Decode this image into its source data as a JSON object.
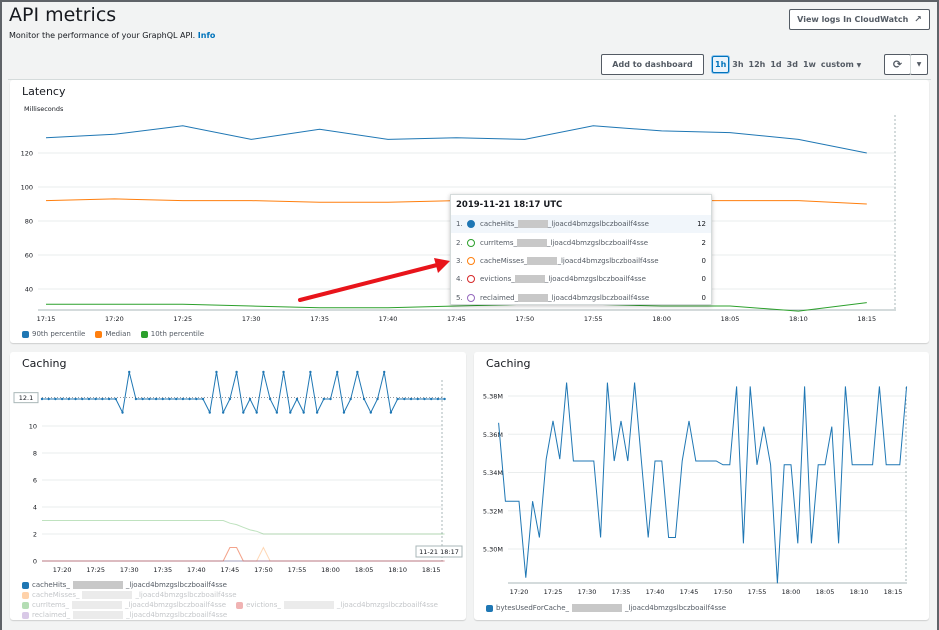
{
  "header": {
    "title": "API metrics",
    "subtitle": "Monitor the performance of your GraphQL API.",
    "info_link": "Info",
    "view_logs": "View logs In CloudWatch",
    "external_icon": "external-link-icon"
  },
  "toolbar": {
    "add_to_dashboard": "Add to dashboard",
    "ranges": [
      "1h",
      "3h",
      "12h",
      "1d",
      "3d",
      "1w"
    ],
    "selected_range": "1h",
    "custom": "custom",
    "refresh_icon": "refresh-icon",
    "dropdown_icon": "caret-down-icon"
  },
  "colors": {
    "blue": "#1f77b4",
    "orange": "#ff7f0e",
    "green": "#2ca02c",
    "red": "#d62728",
    "purple": "#9467bd",
    "accent": "#0073bb",
    "arrow": "#e8141b"
  },
  "tooltip": {
    "title": "2019-11-21 18:17 UTC",
    "rows": [
      {
        "index": "1.",
        "prefix": "cacheHits_",
        "suffix": "_ljoacd4bmzgslbczboailf4sse",
        "value": "12",
        "color": "#1f77b4",
        "filled": true
      },
      {
        "index": "2.",
        "prefix": "currItems_",
        "suffix": "_ljoacd4bmzgslbczboailf4sse",
        "value": "2",
        "color": "#2ca02c",
        "filled": false
      },
      {
        "index": "3.",
        "prefix": "cacheMisses_",
        "suffix": "_ljoacd4bmzgslbczboailf4sse",
        "value": "0",
        "color": "#ff7f0e",
        "filled": false
      },
      {
        "index": "4.",
        "prefix": "evictions_",
        "suffix": "_ljoacd4bmzgslbczboailf4sse",
        "value": "0",
        "color": "#d62728",
        "filled": false
      },
      {
        "index": "5.",
        "prefix": "reclaimed_",
        "suffix": "_ljoacd4bmzgslbczboailf4sse",
        "value": "0",
        "color": "#9467bd",
        "filled": false
      }
    ]
  },
  "chart_data": [
    {
      "type": "line",
      "title": "Latency",
      "ylabel": "Milliseconds",
      "ylim": [
        25,
        142
      ],
      "yticks": [
        40,
        60,
        80,
        100,
        120
      ],
      "xlim": [
        "17:15",
        "18:17"
      ],
      "xticks": [
        "17:15",
        "17:20",
        "17:25",
        "17:30",
        "17:35",
        "17:40",
        "17:45",
        "17:50",
        "17:55",
        "18:00",
        "18:05",
        "18:10",
        "18:15"
      ],
      "x": [
        "17:15",
        "17:20",
        "17:25",
        "17:30",
        "17:35",
        "17:40",
        "17:45",
        "17:50",
        "17:55",
        "18:00",
        "18:05",
        "18:10",
        "18:15"
      ],
      "grid": true,
      "legend": "bottom",
      "series": [
        {
          "name": "90th percentile",
          "color": "#1f77b4",
          "values": [
            129,
            131,
            136,
            128,
            134,
            128,
            129,
            128,
            136,
            133,
            132,
            128,
            120
          ]
        },
        {
          "name": "Median",
          "color": "#ff7f0e",
          "values": [
            92,
            93,
            92,
            92,
            91,
            91,
            92,
            90,
            93,
            92,
            92,
            92,
            90
          ]
        },
        {
          "name": "10th percentile",
          "color": "#2ca02c",
          "values": [
            31,
            31,
            31,
            30,
            29,
            29,
            30,
            31,
            31,
            30,
            30,
            27,
            32
          ]
        }
      ]
    },
    {
      "type": "line",
      "title": "Caching",
      "ylim": [
        0,
        14
      ],
      "yticks": [
        0,
        2,
        4,
        6,
        8,
        10
      ],
      "highlight_ylabel": "12.1",
      "xlim": [
        "17:17",
        "18:17"
      ],
      "xticks": [
        "17:20",
        "17:25",
        "17:30",
        "17:35",
        "17:40",
        "17:45",
        "17:50",
        "17:55",
        "18:00",
        "18:05",
        "18:10",
        "18:15"
      ],
      "cursor_label": "11-21 18:17",
      "start": "17:17",
      "step_minutes": 1,
      "grid": true,
      "legend": "bottom",
      "series": [
        {
          "prefix": "cacheHits_",
          "suffix": "_ljoacd4bmzgslbczboailf4sse",
          "color": "#1f77b4",
          "active": true,
          "values": [
            12,
            12,
            12,
            12,
            12,
            12,
            12,
            12,
            12,
            12,
            12,
            12,
            11,
            14,
            12,
            12,
            12,
            12,
            12,
            12,
            12,
            12,
            12,
            12,
            12,
            11,
            14,
            11,
            12,
            14,
            11,
            12,
            11,
            14,
            12,
            11,
            14,
            11,
            12,
            11,
            14,
            11,
            12,
            12,
            14,
            11,
            12,
            14,
            12,
            11,
            12,
            14,
            11,
            12,
            12,
            12,
            12,
            12,
            12,
            12,
            12
          ]
        },
        {
          "prefix": "cacheMisses_",
          "suffix": "_ljoacd4bmzgslbczboailf4sse",
          "color": "#ff7f0e",
          "active": false,
          "values": [
            0,
            0,
            0,
            0,
            0,
            0,
            0,
            0,
            0,
            0,
            0,
            0,
            0,
            0,
            0,
            0,
            0,
            0,
            0,
            0,
            0,
            0,
            0,
            0,
            0,
            0,
            0,
            0,
            1,
            1,
            0,
            0,
            0,
            1,
            0,
            0,
            0,
            0,
            0,
            0,
            0,
            0,
            0,
            0,
            0,
            0,
            0,
            0,
            0,
            0,
            0,
            0,
            0,
            0,
            0,
            0,
            0,
            0,
            0,
            0,
            0
          ]
        },
        {
          "prefix": "currItems_",
          "suffix": "_ljoacd4bmzgslbczboailf4sse",
          "color": "#2ca02c",
          "active": false,
          "values": [
            3,
            3,
            3,
            3,
            3,
            3,
            3,
            3,
            3,
            3,
            3,
            3,
            3,
            3,
            3,
            3,
            3,
            3,
            3,
            3,
            3,
            3,
            3,
            3,
            3,
            3,
            3,
            3,
            2.8,
            2.7,
            2.5,
            2.3,
            2.2,
            2,
            2,
            2,
            2,
            2,
            2,
            2,
            2,
            2,
            2,
            2,
            2,
            2,
            2,
            2,
            2,
            2,
            2,
            2,
            2,
            2,
            2,
            2,
            2,
            2,
            2,
            2,
            2
          ]
        },
        {
          "prefix": "evictions_",
          "suffix": "_ljoacd4bmzgslbczboailf4sse",
          "color": "#d62728",
          "active": false,
          "values": [
            0,
            0,
            0,
            0,
            0,
            0,
            0,
            0,
            0,
            0,
            0,
            0,
            0,
            0,
            0,
            0,
            0,
            0,
            0,
            0,
            0,
            0,
            0,
            0,
            0,
            0,
            0,
            0,
            1,
            1,
            0,
            0,
            0,
            0,
            0,
            0,
            0,
            0,
            0,
            0,
            0,
            0,
            0,
            0,
            0,
            0,
            0,
            0,
            0,
            0,
            0,
            0,
            0,
            0,
            0,
            0,
            0,
            0,
            0,
            0,
            0
          ]
        },
        {
          "prefix": "reclaimed_",
          "suffix": "_ljoacd4bmzgslbczboailf4sse",
          "color": "#9467bd",
          "active": false,
          "values": [
            0,
            0,
            0,
            0,
            0,
            0,
            0,
            0,
            0,
            0,
            0,
            0,
            0,
            0,
            0,
            0,
            0,
            0,
            0,
            0,
            0,
            0,
            0,
            0,
            0,
            0,
            0,
            0,
            0,
            0,
            0,
            0,
            0,
            0,
            0,
            0,
            0,
            0,
            0,
            0,
            0,
            0,
            0,
            0,
            0,
            0,
            0,
            0,
            0,
            0,
            0,
            0,
            0,
            0,
            0,
            0,
            0,
            0,
            0,
            0,
            0
          ]
        }
      ]
    },
    {
      "type": "line",
      "title": "Caching",
      "ylim": [
        5.282,
        5.39
      ],
      "yticks": [
        "5.30M",
        "5.32M",
        "5.34M",
        "5.36M",
        "5.38M"
      ],
      "ytick_values": [
        5.3,
        5.32,
        5.34,
        5.36,
        5.38
      ],
      "xlim": [
        "17:17",
        "18:17"
      ],
      "xticks": [
        "17:20",
        "17:25",
        "17:30",
        "17:35",
        "17:40",
        "17:45",
        "17:50",
        "17:55",
        "18:00",
        "18:05",
        "18:10",
        "18:15"
      ],
      "start": "17:17",
      "step_minutes": 1,
      "grid": true,
      "legend": "bottom",
      "series": [
        {
          "prefix": "bytesUsedForCache_",
          "suffix": "_ljoacd4bmzgslbczboailf4sse",
          "color": "#1f77b4",
          "values": [
            5.366,
            5.325,
            5.325,
            5.325,
            5.285,
            5.325,
            5.306,
            5.347,
            5.367,
            5.347,
            5.387,
            5.346,
            5.346,
            5.346,
            5.346,
            5.306,
            5.387,
            5.346,
            5.367,
            5.346,
            5.387,
            5.346,
            5.306,
            5.346,
            5.346,
            5.306,
            5.306,
            5.346,
            5.367,
            5.346,
            5.346,
            5.346,
            5.346,
            5.344,
            5.344,
            5.385,
            5.303,
            5.385,
            5.344,
            5.364,
            5.344,
            5.282,
            5.344,
            5.344,
            5.303,
            5.385,
            5.303,
            5.344,
            5.344,
            5.364,
            5.303,
            5.385,
            5.344,
            5.344,
            5.344,
            5.344,
            5.385,
            5.344,
            5.344,
            5.344,
            5.385
          ]
        }
      ]
    }
  ]
}
